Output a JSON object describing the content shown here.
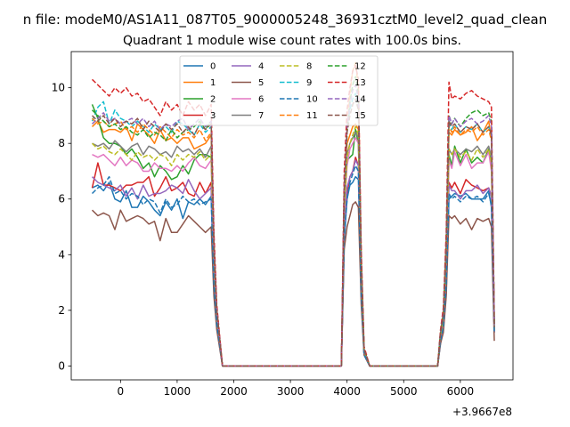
{
  "chart_data": {
    "type": "line",
    "suptitle": "n file: modeM0/AS1A11_087T05_9000005248_36931cztM0_level2_quad_clean",
    "title": "Quadrant 1 module wise count rates with 100.0s bins.",
    "xlabel": "",
    "ylabel": "",
    "x_offset_label": "+3.9667e8",
    "xlim": [
      -870,
      6930
    ],
    "ylim": [
      -0.5,
      11.3
    ],
    "xticks": [
      0,
      1000,
      2000,
      3000,
      4000,
      5000,
      6000
    ],
    "yticks": [
      0,
      2,
      4,
      6,
      8,
      10
    ],
    "legend_position": "top-center",
    "legend_columns": 5,
    "x": [
      -500,
      -400,
      -300,
      -200,
      -100,
      0,
      100,
      200,
      300,
      400,
      500,
      600,
      700,
      800,
      900,
      1000,
      1100,
      1200,
      1300,
      1400,
      1500,
      1600,
      1650,
      1700,
      1800,
      1900,
      2000,
      3000,
      3900,
      3950,
      4000,
      4050,
      4100,
      4150,
      4200,
      4250,
      4300,
      4400,
      5000,
      5600,
      5650,
      5700,
      5750,
      5800,
      5850,
      5900,
      6000,
      6100,
      6200,
      6300,
      6400,
      6500,
      6550,
      6600
    ],
    "series": [
      {
        "name": "0",
        "color": "#1f77b4",
        "dash": "solid",
        "values": [
          6.4,
          6.5,
          6.3,
          6.6,
          6.0,
          5.9,
          6.3,
          5.7,
          5.7,
          6.1,
          5.9,
          5.6,
          5.4,
          5.9,
          5.6,
          6.0,
          5.3,
          5.9,
          5.8,
          6.0,
          5.8,
          6.1,
          2.8,
          1.6,
          0,
          0,
          0,
          0,
          0,
          4.5,
          6.0,
          6.5,
          6.6,
          6.8,
          6.7,
          2.5,
          0.4,
          0,
          0,
          0,
          0.8,
          1.4,
          2.6,
          6.0,
          6.1,
          6.2,
          6.1,
          6.2,
          6.0,
          6.0,
          6.0,
          6.3,
          5.7,
          1.2
        ]
      },
      {
        "name": "1",
        "color": "#ff7f0e",
        "dash": "solid",
        "values": [
          8.6,
          8.8,
          8.4,
          8.5,
          8.5,
          8.4,
          8.6,
          8.1,
          8.7,
          8.5,
          8.3,
          8.0,
          8.5,
          8.1,
          8.2,
          8.0,
          8.2,
          8.2,
          7.8,
          7.9,
          8.0,
          8.3,
          4.5,
          2.0,
          0,
          0,
          0,
          0,
          0,
          6.0,
          8.0,
          8.3,
          8.6,
          8.7,
          8.5,
          3.8,
          0.6,
          0,
          0,
          0,
          1.1,
          1.8,
          4.5,
          8.4,
          8.3,
          8.5,
          8.3,
          8.4,
          8.6,
          8.1,
          8.4,
          8.8,
          8.2,
          1.5
        ]
      },
      {
        "name": "2",
        "color": "#2ca02c",
        "dash": "solid",
        "values": [
          9.4,
          8.9,
          8.2,
          8.0,
          8.0,
          7.9,
          7.6,
          7.8,
          7.5,
          7.1,
          7.3,
          6.8,
          7.2,
          7.0,
          6.7,
          6.8,
          7.2,
          6.9,
          7.4,
          7.6,
          7.6,
          7.5,
          3.8,
          1.8,
          0,
          0,
          0,
          0,
          0,
          5.8,
          7.4,
          7.5,
          7.6,
          8.5,
          8.0,
          3.2,
          0.5,
          0,
          0,
          0,
          1.0,
          1.6,
          3.8,
          7.6,
          7.2,
          7.9,
          7.3,
          7.8,
          7.3,
          7.5,
          7.3,
          7.8,
          7.2,
          1.4
        ]
      },
      {
        "name": "3",
        "color": "#d62728",
        "dash": "solid",
        "values": [
          6.4,
          7.3,
          6.5,
          6.5,
          6.4,
          6.3,
          6.5,
          6.5,
          6.6,
          6.6,
          6.8,
          6.1,
          6.4,
          6.8,
          6.3,
          6.4,
          6.6,
          6.2,
          6.1,
          6.6,
          6.2,
          6.6,
          3.2,
          1.6,
          0,
          0,
          0,
          0,
          0,
          5.0,
          6.2,
          6.8,
          7.0,
          7.5,
          7.2,
          2.8,
          0.5,
          0,
          0,
          0,
          0.9,
          1.5,
          3.2,
          6.6,
          6.4,
          6.6,
          6.2,
          6.7,
          6.5,
          6.4,
          6.3,
          6.4,
          6.1,
          1.3
        ]
      },
      {
        "name": "4",
        "color": "#9467bd",
        "dash": "solid",
        "values": [
          6.8,
          6.6,
          6.5,
          6.4,
          6.3,
          6.5,
          6.1,
          6.4,
          6.0,
          6.5,
          6.1,
          6.2,
          6.2,
          6.3,
          6.5,
          6.4,
          6.2,
          6.7,
          6.3,
          6.0,
          6.2,
          6.4,
          3.0,
          1.5,
          0,
          0,
          0,
          0,
          0,
          4.8,
          6.4,
          6.8,
          7.0,
          7.4,
          7.2,
          2.7,
          0.4,
          0,
          0,
          0,
          0.9,
          1.4,
          3.0,
          6.5,
          6.3,
          6.3,
          6.0,
          6.3,
          6.3,
          6.5,
          6.2,
          6.4,
          6.1,
          1.2
        ]
      },
      {
        "name": "5",
        "color": "#8c564b",
        "dash": "solid",
        "values": [
          5.6,
          5.4,
          5.5,
          5.4,
          4.9,
          5.6,
          5.2,
          5.3,
          5.4,
          5.3,
          5.1,
          5.2,
          4.5,
          5.3,
          4.8,
          4.8,
          5.1,
          5.4,
          5.2,
          5.0,
          4.8,
          5.0,
          2.5,
          1.3,
          0,
          0,
          0,
          0,
          0,
          4.2,
          5.0,
          5.4,
          5.8,
          5.9,
          5.7,
          2.2,
          0.4,
          0,
          0,
          0,
          0.8,
          1.2,
          2.5,
          5.4,
          5.3,
          5.4,
          5.1,
          5.3,
          4.9,
          5.3,
          5.2,
          5.3,
          5.0,
          0.9
        ]
      },
      {
        "name": "6",
        "color": "#e377c2",
        "dash": "solid",
        "values": [
          7.6,
          7.5,
          7.6,
          7.4,
          7.2,
          7.5,
          7.2,
          7.4,
          7.3,
          7.0,
          7.0,
          7.3,
          7.1,
          7.1,
          7.0,
          7.2,
          7.0,
          7.3,
          7.5,
          7.2,
          7.1,
          7.4,
          3.5,
          1.7,
          0,
          0,
          0,
          0,
          0,
          5.5,
          7.2,
          7.8,
          8.0,
          8.2,
          8.0,
          3.0,
          0.5,
          0,
          0,
          0,
          1.0,
          1.5,
          3.5,
          7.4,
          7.1,
          7.7,
          7.2,
          7.6,
          7.1,
          7.3,
          7.3,
          7.7,
          7.0,
          1.4
        ]
      },
      {
        "name": "7",
        "color": "#7f7f7f",
        "dash": "solid",
        "values": [
          8.0,
          7.9,
          8.0,
          7.8,
          8.1,
          7.9,
          7.7,
          7.9,
          8.0,
          7.6,
          7.9,
          7.8,
          7.6,
          7.7,
          7.5,
          7.9,
          7.7,
          7.8,
          7.6,
          7.8,
          7.5,
          7.9,
          3.7,
          1.8,
          0,
          0,
          0,
          0,
          0,
          5.7,
          7.6,
          8.0,
          8.2,
          8.4,
          8.2,
          3.2,
          0.5,
          0,
          0,
          0,
          1.0,
          1.6,
          3.7,
          7.8,
          7.6,
          7.8,
          7.6,
          7.8,
          7.7,
          7.9,
          7.6,
          7.9,
          7.5,
          1.4
        ]
      },
      {
        "name": "8",
        "color": "#bcbd22",
        "dash": "dashed",
        "values": [
          8.0,
          7.8,
          7.9,
          7.7,
          7.6,
          7.8,
          7.6,
          7.4,
          7.7,
          7.5,
          7.6,
          7.4,
          7.6,
          7.5,
          7.2,
          7.6,
          7.4,
          7.6,
          7.5,
          7.7,
          7.4,
          7.6,
          3.6,
          1.7,
          0,
          0,
          0,
          0,
          0,
          5.6,
          7.5,
          8.0,
          8.3,
          8.6,
          8.3,
          3.1,
          0.5,
          0,
          0,
          0,
          1.0,
          1.6,
          3.6,
          7.8,
          7.6,
          7.8,
          7.5,
          7.7,
          7.4,
          7.8,
          7.5,
          7.8,
          7.3,
          1.3
        ]
      },
      {
        "name": "9",
        "color": "#17becf",
        "dash": "dashed",
        "values": [
          8.8,
          9.3,
          9.5,
          8.7,
          9.2,
          8.9,
          8.8,
          8.6,
          8.8,
          8.6,
          8.4,
          8.7,
          8.5,
          8.6,
          8.4,
          8.8,
          8.7,
          8.5,
          8.3,
          8.7,
          8.4,
          8.6,
          4.3,
          2.0,
          0,
          0,
          0,
          0,
          0,
          6.4,
          8.6,
          9.2,
          9.6,
          9.8,
          9.4,
          3.8,
          0.6,
          0,
          0,
          0,
          1.2,
          1.9,
          4.3,
          8.8,
          8.5,
          8.7,
          8.4,
          8.6,
          8.5,
          8.7,
          8.4,
          8.6,
          8.2,
          1.5
        ]
      },
      {
        "name": "10",
        "color": "#1f77b4",
        "dash": "dashed",
        "values": [
          6.2,
          6.4,
          6.5,
          6.8,
          6.2,
          6.3,
          6.0,
          6.2,
          6.1,
          5.8,
          6.0,
          5.9,
          5.5,
          6.0,
          5.7,
          5.8,
          6.1,
          5.9,
          6.0,
          5.8,
          5.9,
          6.0,
          2.9,
          1.5,
          0,
          0,
          0,
          0,
          0,
          4.6,
          6.0,
          6.6,
          6.9,
          7.2,
          7.0,
          2.6,
          0.4,
          0,
          0,
          0,
          0.9,
          1.4,
          2.9,
          6.2,
          6.0,
          6.1,
          5.9,
          6.1,
          6.0,
          6.1,
          5.9,
          6.2,
          5.8,
          1.2
        ]
      },
      {
        "name": "11",
        "color": "#ff7f0e",
        "dash": "dashed",
        "values": [
          8.9,
          8.7,
          8.8,
          8.6,
          8.7,
          8.8,
          8.5,
          8.6,
          8.4,
          8.7,
          8.5,
          8.3,
          8.6,
          8.4,
          8.2,
          8.5,
          8.3,
          8.4,
          8.2,
          8.5,
          8.1,
          8.4,
          4.2,
          2.0,
          0,
          0,
          0,
          0,
          0,
          6.3,
          8.5,
          9.8,
          10.6,
          10.9,
          10.0,
          3.9,
          0.6,
          0,
          0,
          0,
          1.2,
          1.9,
          4.2,
          8.6,
          8.4,
          8.6,
          8.3,
          8.5,
          8.4,
          8.6,
          8.3,
          8.5,
          8.1,
          1.5
        ]
      },
      {
        "name": "12",
        "color": "#2ca02c",
        "dash": "dashed",
        "values": [
          9.2,
          9.0,
          8.8,
          8.6,
          8.7,
          8.5,
          8.6,
          8.4,
          8.3,
          8.5,
          8.2,
          8.4,
          8.3,
          8.1,
          8.5,
          8.2,
          8.4,
          8.5,
          8.6,
          8.8,
          8.5,
          8.8,
          4.4,
          2.0,
          0,
          0,
          0,
          0,
          0,
          6.2,
          8.4,
          9.5,
          10.1,
          10.4,
          9.8,
          3.8,
          0.6,
          0,
          0,
          0,
          1.2,
          1.9,
          4.4,
          9.0,
          8.7,
          8.9,
          8.6,
          8.9,
          9.1,
          9.2,
          9.0,
          9.1,
          8.8,
          1.6
        ]
      },
      {
        "name": "13",
        "color": "#d62728",
        "dash": "dashed",
        "values": [
          10.3,
          10.1,
          9.9,
          9.7,
          10.0,
          9.8,
          10.0,
          9.7,
          9.8,
          9.5,
          9.6,
          9.3,
          9.0,
          9.5,
          9.2,
          9.4,
          9.0,
          9.5,
          9.2,
          9.4,
          9.0,
          9.4,
          4.8,
          2.2,
          0,
          0,
          0,
          0,
          0,
          7.0,
          9.2,
          10.0,
          10.6,
          10.8,
          10.3,
          4.2,
          0.7,
          0,
          0,
          0,
          1.3,
          2.1,
          4.8,
          10.2,
          9.6,
          9.7,
          9.6,
          9.8,
          9.9,
          9.7,
          9.6,
          9.5,
          9.3,
          1.7
        ]
      },
      {
        "name": "14",
        "color": "#9467bd",
        "dash": "dashed",
        "values": [
          8.7,
          8.9,
          9.1,
          8.8,
          8.9,
          8.7,
          8.8,
          8.9,
          8.7,
          8.9,
          8.6,
          8.8,
          8.5,
          8.7,
          8.6,
          8.8,
          8.9,
          8.5,
          8.7,
          8.9,
          8.6,
          8.8,
          4.3,
          2.0,
          0,
          0,
          0,
          0,
          0,
          6.4,
          8.6,
          9.4,
          9.9,
          10.1,
          9.6,
          3.8,
          0.6,
          0,
          0,
          0,
          1.2,
          1.9,
          4.3,
          9.0,
          8.7,
          8.9,
          8.6,
          8.8,
          8.9,
          8.7,
          8.8,
          9.0,
          8.6,
          1.5
        ]
      },
      {
        "name": "15",
        "color": "#8c564b",
        "dash": "dashed",
        "values": [
          9.0,
          8.8,
          9.0,
          8.7,
          8.9,
          8.6,
          8.8,
          8.7,
          8.9,
          8.5,
          8.8,
          8.6,
          8.4,
          8.7,
          8.5,
          8.7,
          8.4,
          8.6,
          8.3,
          8.7,
          8.5,
          8.7,
          4.2,
          2.0,
          0,
          0,
          0,
          0,
          0,
          6.3,
          8.4,
          9.0,
          9.4,
          9.6,
          9.2,
          3.7,
          0.6,
          0,
          0,
          0,
          1.2,
          1.8,
          4.2,
          8.8,
          8.6,
          8.7,
          8.4,
          8.6,
          8.5,
          8.7,
          8.4,
          8.6,
          8.3,
          1.4
        ]
      }
    ]
  }
}
